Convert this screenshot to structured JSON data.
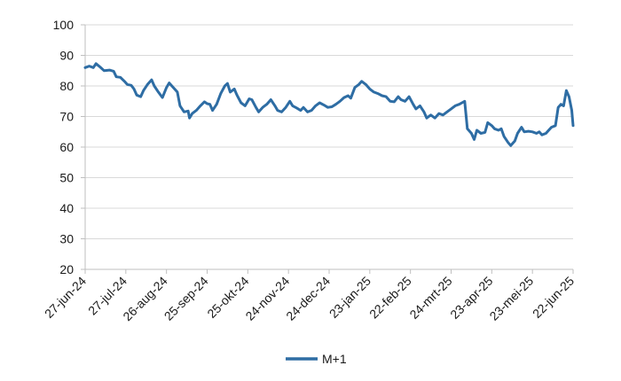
{
  "chart_data": {
    "type": "line",
    "title": "",
    "xlabel": "",
    "ylabel": "",
    "ylim": [
      20,
      100
    ],
    "yticks": [
      20,
      30,
      40,
      50,
      60,
      70,
      80,
      90,
      100
    ],
    "xlim": [
      "2024-06-27",
      "2025-06-22"
    ],
    "xtick_labels": [
      "27-jun-24",
      "27-jul-24",
      "26-aug-24",
      "25-sep-24",
      "25-okt-24",
      "24-nov-24",
      "24-dec-24",
      "23-jan-25",
      "22-feb-25",
      "24-mrt-25",
      "23-apr-25",
      "23-mei-25",
      "22-jun-25"
    ],
    "xtick_dates": [
      "2024-06-27",
      "2024-07-27",
      "2024-08-26",
      "2024-09-25",
      "2024-10-25",
      "2024-11-24",
      "2024-12-24",
      "2025-01-23",
      "2025-02-22",
      "2025-03-24",
      "2025-04-23",
      "2025-05-23",
      "2025-06-22"
    ],
    "grid": true,
    "legend_position": "bottom-center",
    "series": [
      {
        "name": "M+1",
        "color": "#2e6da4",
        "points": [
          [
            "2024-06-27",
            86.0
          ],
          [
            "2024-06-30",
            86.5
          ],
          [
            "2024-07-03",
            86.0
          ],
          [
            "2024-07-05",
            87.3
          ],
          [
            "2024-07-08",
            86.2
          ],
          [
            "2024-07-11",
            85.0
          ],
          [
            "2024-07-15",
            85.2
          ],
          [
            "2024-07-18",
            84.8
          ],
          [
            "2024-07-20",
            83.0
          ],
          [
            "2024-07-23",
            82.8
          ],
          [
            "2024-07-26",
            81.5
          ],
          [
            "2024-07-28",
            80.5
          ],
          [
            "2024-07-31",
            80.2
          ],
          [
            "2024-08-02",
            79.0
          ],
          [
            "2024-08-04",
            77.0
          ],
          [
            "2024-08-07",
            76.5
          ],
          [
            "2024-08-09",
            78.5
          ],
          [
            "2024-08-12",
            80.5
          ],
          [
            "2024-08-15",
            82.0
          ],
          [
            "2024-08-17",
            80.0
          ],
          [
            "2024-08-20",
            78.0
          ],
          [
            "2024-08-23",
            76.2
          ],
          [
            "2024-08-26",
            79.5
          ],
          [
            "2024-08-28",
            81.0
          ],
          [
            "2024-08-31",
            79.5
          ],
          [
            "2024-09-03",
            78.0
          ],
          [
            "2024-09-05",
            73.5
          ],
          [
            "2024-09-08",
            71.5
          ],
          [
            "2024-09-11",
            71.8
          ],
          [
            "2024-09-12",
            69.5
          ],
          [
            "2024-09-14",
            71.0
          ],
          [
            "2024-09-17",
            72.0
          ],
          [
            "2024-09-20",
            73.5
          ],
          [
            "2024-09-23",
            74.8
          ],
          [
            "2024-09-25",
            74.2
          ],
          [
            "2024-09-27",
            74.0
          ],
          [
            "2024-09-29",
            72.0
          ],
          [
            "2024-10-02",
            74.0
          ],
          [
            "2024-10-05",
            77.5
          ],
          [
            "2024-10-08",
            80.0
          ],
          [
            "2024-10-10",
            80.8
          ],
          [
            "2024-10-12",
            78.0
          ],
          [
            "2024-10-15",
            79.0
          ],
          [
            "2024-10-17",
            77.0
          ],
          [
            "2024-10-20",
            74.5
          ],
          [
            "2024-10-23",
            73.5
          ],
          [
            "2024-10-26",
            75.8
          ],
          [
            "2024-10-28",
            75.5
          ],
          [
            "2024-10-31",
            73.0
          ],
          [
            "2024-11-02",
            71.5
          ],
          [
            "2024-11-05",
            73.0
          ],
          [
            "2024-11-08",
            74.0
          ],
          [
            "2024-11-11",
            75.5
          ],
          [
            "2024-11-14",
            73.5
          ],
          [
            "2024-11-16",
            72.0
          ],
          [
            "2024-11-19",
            71.5
          ],
          [
            "2024-11-22",
            73.0
          ],
          [
            "2024-11-25",
            75.0
          ],
          [
            "2024-11-27",
            73.5
          ],
          [
            "2024-11-30",
            72.8
          ],
          [
            "2024-12-03",
            72.0
          ],
          [
            "2024-12-05",
            73.0
          ],
          [
            "2024-12-08",
            71.5
          ],
          [
            "2024-12-11",
            72.0
          ],
          [
            "2024-12-14",
            73.5
          ],
          [
            "2024-12-17",
            74.5
          ],
          [
            "2024-12-20",
            73.8
          ],
          [
            "2024-12-23",
            73.0
          ],
          [
            "2024-12-26",
            73.2
          ],
          [
            "2024-12-29",
            74.0
          ],
          [
            "2025-01-01",
            75.0
          ],
          [
            "2025-01-04",
            76.2
          ],
          [
            "2025-01-07",
            76.8
          ],
          [
            "2025-01-09",
            76.0
          ],
          [
            "2025-01-12",
            79.5
          ],
          [
            "2025-01-15",
            80.5
          ],
          [
            "2025-01-17",
            81.5
          ],
          [
            "2025-01-20",
            80.5
          ],
          [
            "2025-01-23",
            79.0
          ],
          [
            "2025-01-26",
            78.0
          ],
          [
            "2025-01-29",
            77.5
          ],
          [
            "2025-02-01",
            76.8
          ],
          [
            "2025-02-04",
            76.5
          ],
          [
            "2025-02-07",
            75.0
          ],
          [
            "2025-02-10",
            74.8
          ],
          [
            "2025-02-13",
            76.5
          ],
          [
            "2025-02-15",
            75.5
          ],
          [
            "2025-02-18",
            75.0
          ],
          [
            "2025-02-21",
            76.5
          ],
          [
            "2025-02-24",
            74.0
          ],
          [
            "2025-02-26",
            72.5
          ],
          [
            "2025-03-01",
            73.5
          ],
          [
            "2025-03-04",
            71.5
          ],
          [
            "2025-03-06",
            69.5
          ],
          [
            "2025-03-09",
            70.5
          ],
          [
            "2025-03-12",
            69.5
          ],
          [
            "2025-03-15",
            71.0
          ],
          [
            "2025-03-18",
            70.5
          ],
          [
            "2025-03-21",
            71.5
          ],
          [
            "2025-03-24",
            72.5
          ],
          [
            "2025-03-27",
            73.5
          ],
          [
            "2025-03-30",
            74.0
          ],
          [
            "2025-04-01",
            74.5
          ],
          [
            "2025-04-03",
            75.0
          ],
          [
            "2025-04-05",
            66.0
          ],
          [
            "2025-04-08",
            64.5
          ],
          [
            "2025-04-10",
            62.5
          ],
          [
            "2025-04-12",
            65.5
          ],
          [
            "2025-04-15",
            64.5
          ],
          [
            "2025-04-18",
            64.8
          ],
          [
            "2025-04-20",
            68.0
          ],
          [
            "2025-04-23",
            67.0
          ],
          [
            "2025-04-25",
            66.0
          ],
          [
            "2025-04-28",
            65.5
          ],
          [
            "2025-04-30",
            66.0
          ],
          [
            "2025-05-02",
            63.5
          ],
          [
            "2025-05-05",
            61.5
          ],
          [
            "2025-05-07",
            60.5
          ],
          [
            "2025-05-10",
            62.0
          ],
          [
            "2025-05-12",
            64.5
          ],
          [
            "2025-05-15",
            66.5
          ],
          [
            "2025-05-17",
            65.0
          ],
          [
            "2025-05-20",
            65.2
          ],
          [
            "2025-05-23",
            65.0
          ],
          [
            "2025-05-26",
            64.5
          ],
          [
            "2025-05-28",
            65.0
          ],
          [
            "2025-05-30",
            64.0
          ],
          [
            "2025-06-02",
            64.5
          ],
          [
            "2025-06-04",
            65.5
          ],
          [
            "2025-06-06",
            66.5
          ],
          [
            "2025-06-09",
            67.0
          ],
          [
            "2025-06-11",
            73.0
          ],
          [
            "2025-06-13",
            74.0
          ],
          [
            "2025-06-15",
            73.5
          ],
          [
            "2025-06-17",
            78.5
          ],
          [
            "2025-06-19",
            76.5
          ],
          [
            "2025-06-21",
            72.0
          ],
          [
            "2025-06-22",
            67.0
          ]
        ]
      }
    ]
  }
}
